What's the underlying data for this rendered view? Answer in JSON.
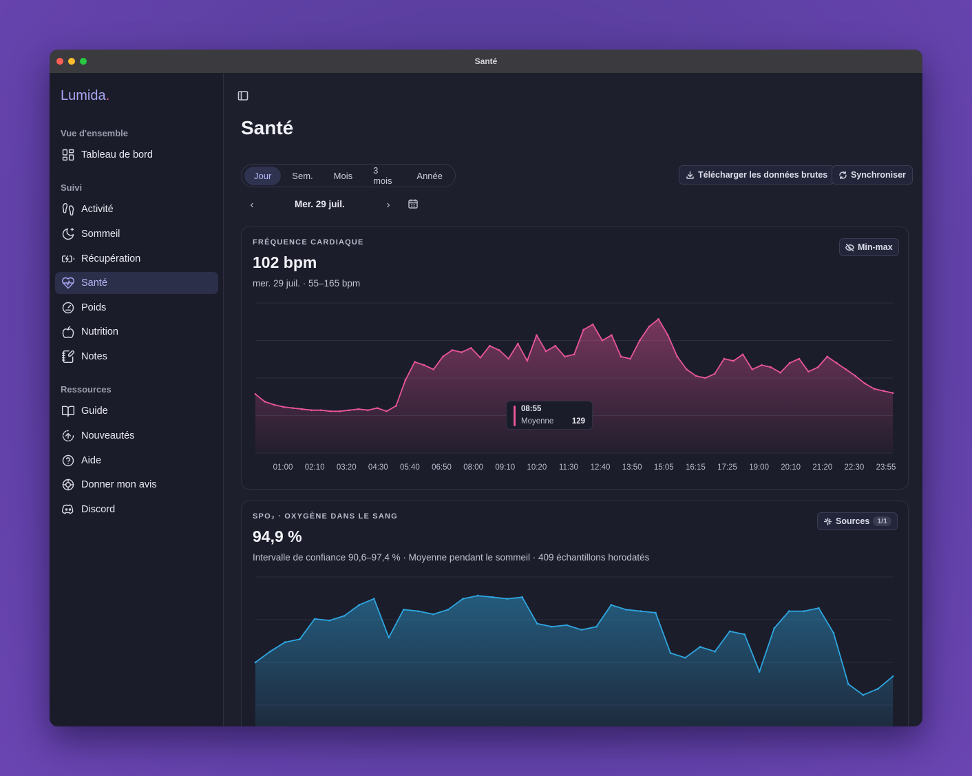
{
  "window": {
    "title": "Santé"
  },
  "sidebar": {
    "brand": "Lumida",
    "brand_dot": ".",
    "sections": [
      {
        "label": "Vue d'ensemble"
      },
      {
        "label": "Suivi"
      },
      {
        "label": "Ressources"
      }
    ],
    "items": [
      {
        "label": "Tableau de bord",
        "icon": "dashboard-icon"
      },
      {
        "label": "Activité",
        "icon": "footprints-icon"
      },
      {
        "label": "Sommeil",
        "icon": "moon-icon"
      },
      {
        "label": "Récupération",
        "icon": "battery-charging-icon"
      },
      {
        "label": "Santé",
        "icon": "heart-pulse-icon",
        "active": true
      },
      {
        "label": "Poids",
        "icon": "gauge-icon"
      },
      {
        "label": "Nutrition",
        "icon": "apple-icon"
      },
      {
        "label": "Notes",
        "icon": "notebook-pen-icon"
      },
      {
        "label": "Guide",
        "icon": "book-icon"
      },
      {
        "label": "Nouveautés",
        "icon": "circle-arrow-up-icon"
      },
      {
        "label": "Aide",
        "icon": "help-circle-icon"
      },
      {
        "label": "Donner mon avis",
        "icon": "feedback-icon"
      },
      {
        "label": "Discord",
        "icon": "discord-icon"
      }
    ]
  },
  "main": {
    "title": "Santé",
    "ranges": [
      "Jour",
      "Sem.",
      "Mois",
      "3 mois",
      "Année"
    ],
    "active_range": "Jour",
    "date": "Mer. 29 juil.",
    "actions": {
      "download": "Télécharger les données brutes",
      "sync": "Synchroniser"
    }
  },
  "heart_card": {
    "title": "FRÉQUENCE CARDIAQUE",
    "value": "102 bpm",
    "subtitle": "mer. 29 juil. · 55–165 bpm",
    "button": "Min-max",
    "tooltip": {
      "time": "08:55",
      "label": "Moyenne",
      "value": "129"
    }
  },
  "spo2_card": {
    "title": "SPO₂ · OXYGÈNE DANS LE SANG",
    "value": "94,9 %",
    "subtitle": "Intervalle de confiance 90,6–97,4 % · Moyenne pendant le sommeil · 409 échantillons horodatés",
    "button": "Sources",
    "badge": "1/1"
  },
  "colors": {
    "accent": "#a8a6f4",
    "heart_line": "#e8559a",
    "spo2_line": "#2ea6e0"
  },
  "chart_data": [
    {
      "type": "area",
      "x_ticks": [
        "01:00",
        "02:10",
        "03:20",
        "04:30",
        "05:40",
        "06:50",
        "08:00",
        "09:10",
        "10:20",
        "11:30",
        "12:40",
        "13:50",
        "15:05",
        "16:15",
        "17:25",
        "19:00",
        "20:10",
        "21:20",
        "22:30",
        "23:55"
      ],
      "series": [
        {
          "values": [
            95,
            88,
            85,
            83,
            82,
            81,
            80,
            80,
            79,
            79,
            80,
            81,
            80,
            82,
            79,
            84,
            108,
            125,
            122,
            118,
            130,
            136,
            134,
            138,
            129,
            140,
            136,
            128,
            142,
            126,
            150,
            135,
            140,
            130,
            132,
            155,
            160,
            145,
            150,
            130,
            128,
            145,
            158,
            165,
            150,
            130,
            118,
            112,
            110,
            114,
            128,
            126,
            132,
            118,
            122,
            120,
            115,
            124,
            128,
            116,
            120,
            130,
            124,
            118,
            112,
            105,
            100,
            98,
            96
          ]
        }
      ],
      "ylim": [
        40,
        180
      ],
      "grid": true
    },
    {
      "type": "area",
      "series": [
        {
          "values": [
            93.5,
            94.2,
            94.8,
            95.0,
            96.3,
            96.2,
            96.5,
            97.2,
            97.6,
            95.1,
            96.9,
            96.8,
            96.6,
            96.9,
            97.6,
            97.8,
            97.7,
            97.6,
            97.7,
            96.0,
            95.8,
            95.9,
            95.6,
            95.8,
            97.2,
            96.9,
            96.8,
            96.7,
            94.1,
            93.8,
            94.5,
            94.2,
            95.5,
            95.3,
            92.9,
            95.7,
            96.8,
            96.8,
            97.0,
            95.4,
            92.1,
            91.4,
            91.8,
            92.6
          ]
        }
      ],
      "ylim": [
        88,
        99
      ],
      "grid": true
    }
  ]
}
